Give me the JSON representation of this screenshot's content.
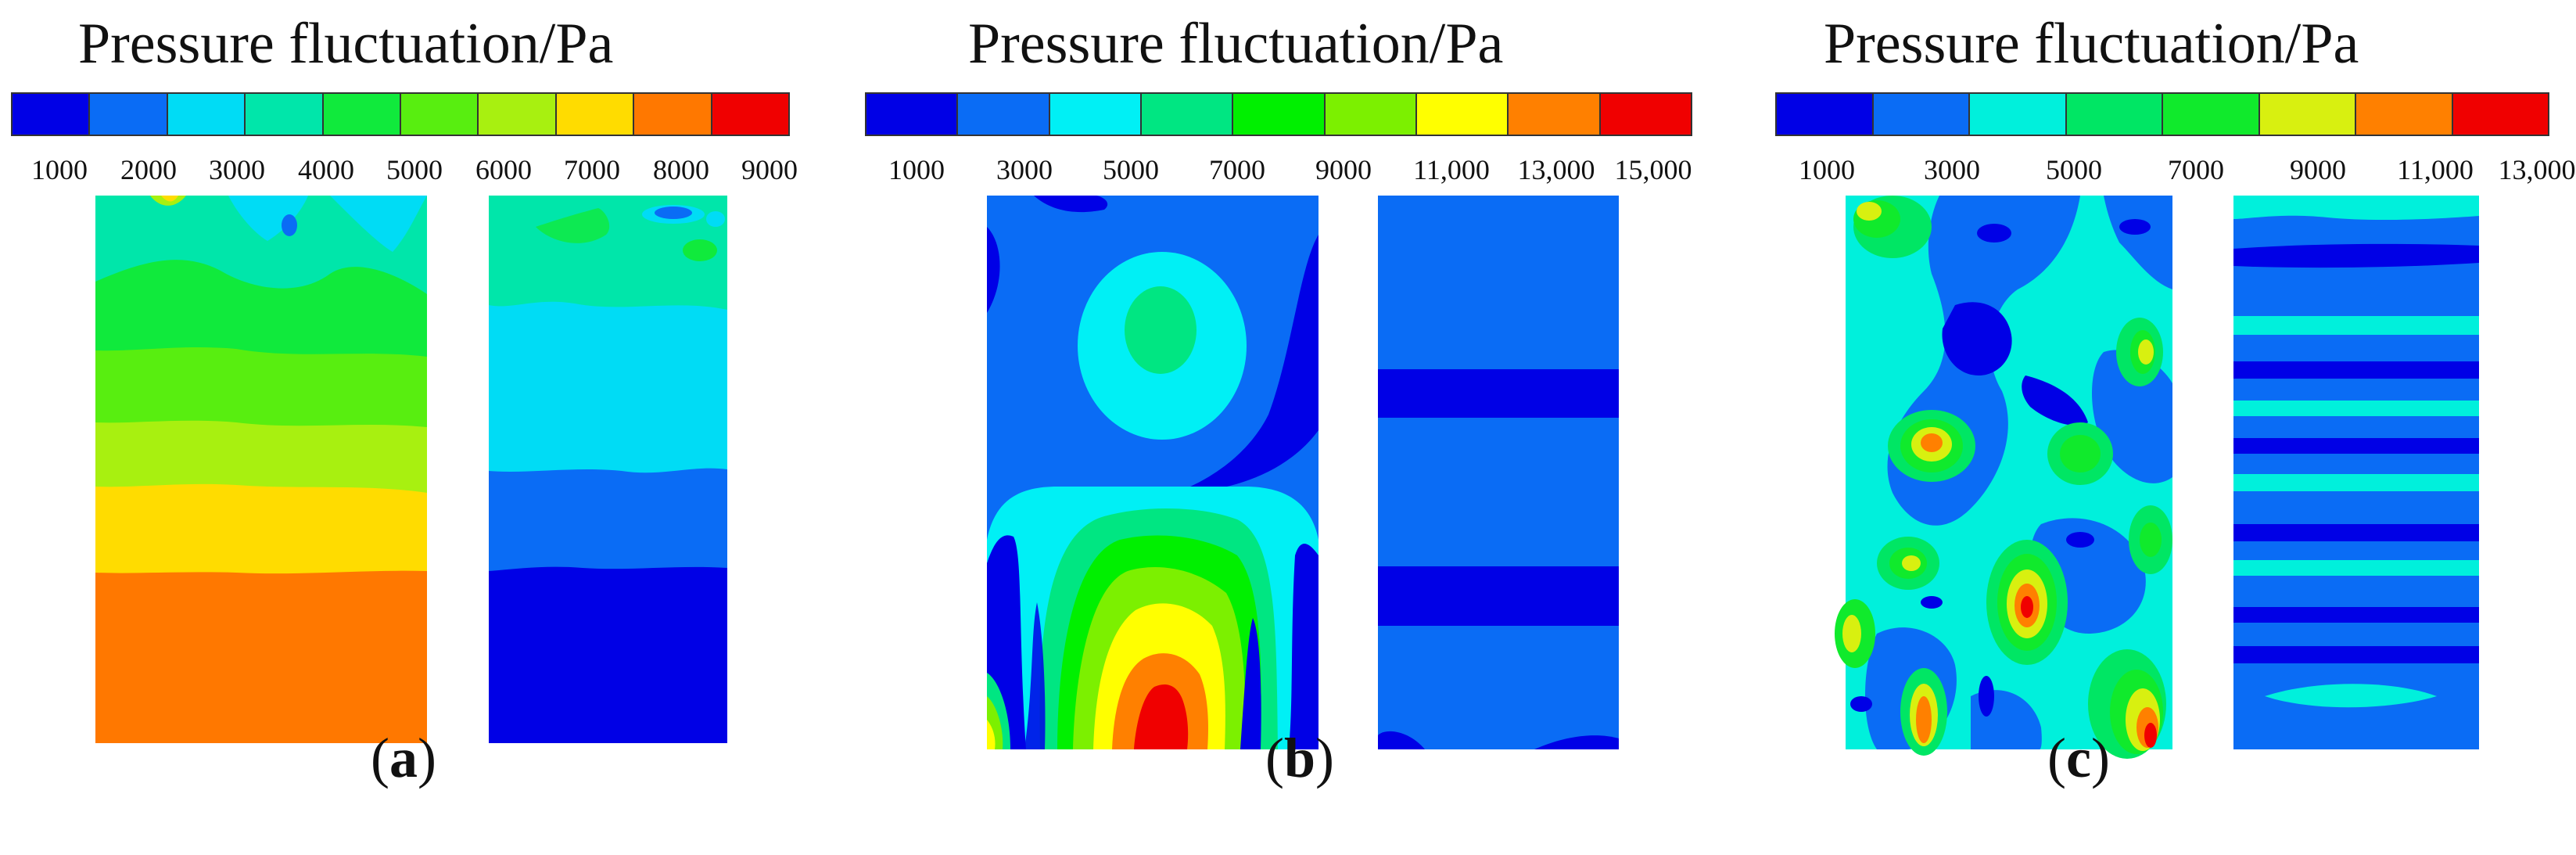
{
  "panels": [
    {
      "id": "a",
      "title": "Pressure fluctuation/Pa",
      "caption": "a",
      "colorbar": [
        "#0000e6",
        "#0a6cf5",
        "#00dcf5",
        "#00e6aa",
        "#10ea3c",
        "#58ee10",
        "#a8f010",
        "#ffdc00",
        "#ff7800",
        "#f00000"
      ],
      "ticks": [
        "1000",
        "2000",
        "3000",
        "4000",
        "5000",
        "6000",
        "7000",
        "8000",
        "9000"
      ]
    },
    {
      "id": "b",
      "title": "Pressure fluctuation/Pa",
      "caption": "b",
      "colorbar": [
        "#0000e6",
        "#0a6cf5",
        "#00f0f5",
        "#00e682",
        "#00f000",
        "#7cf000",
        "#ffff00",
        "#ff8000",
        "#f00000"
      ],
      "ticks": [
        "1000",
        "3000",
        "5000",
        "7000",
        "9000",
        "11,000",
        "13,000",
        "15,000"
      ]
    },
    {
      "id": "c",
      "title": "Pressure fluctuation/Pa",
      "caption": "c",
      "colorbar": [
        "#0000e6",
        "#0a6cf5",
        "#00f0dc",
        "#00e664",
        "#10ea2c",
        "#d8f010",
        "#ff8000",
        "#f00000"
      ],
      "ticks": [
        "1000",
        "3000",
        "5000",
        "7000",
        "9000",
        "11,000",
        "13,000"
      ]
    }
  ]
}
